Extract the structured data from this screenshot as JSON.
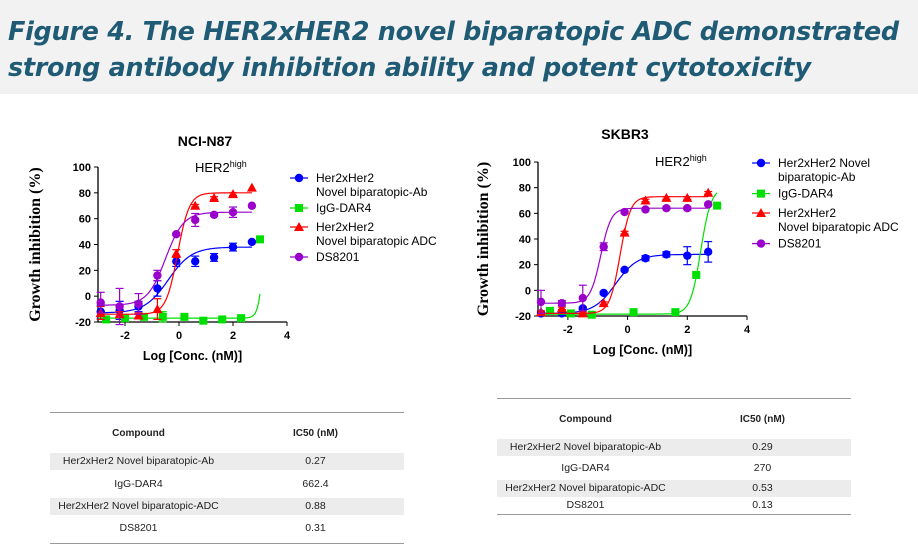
{
  "title": "Figure 4. The HER2xHER2 novel biparatopic ADC demonstrated strong antibody inhibition ability and potent cytotoxicity",
  "chart_data": [
    {
      "type": "scatter",
      "title": "NCI-N87",
      "annotation": "HER2",
      "annotation_sup": "high",
      "xlabel": "Log [Conc. (nM)]",
      "ylabel": "Growth inhibition (%)",
      "xlim": [
        -3,
        4
      ],
      "ylim": [
        -20,
        100
      ],
      "xticks": [
        -2,
        0,
        2,
        4
      ],
      "yticks": [
        -20,
        0,
        20,
        40,
        60,
        80,
        100
      ],
      "legend": "right",
      "series": [
        {
          "name": "Her2xHer2\nNovel biparatopic-Ab",
          "color": "#0000ff",
          "marker": "circle",
          "x": [
            -2.9,
            -2.2,
            -1.5,
            -0.8,
            -0.1,
            0.6,
            1.3,
            2.0,
            2.7
          ],
          "y": [
            -12,
            -11,
            -8,
            6,
            27,
            27,
            30,
            38,
            42
          ],
          "err": [
            5,
            7,
            4,
            6,
            4,
            4,
            3,
            3,
            0
          ],
          "fit": {
            "bottom": -13,
            "top": 38,
            "logec50": -0.4,
            "hill": 1.0
          }
        },
        {
          "name": "IgG-DAR4",
          "color": "#00e000",
          "marker": "square",
          "x": [
            -2.7,
            -2.0,
            -1.3,
            -0.6,
            0.2,
            0.9,
            1.6,
            2.3,
            3.0
          ],
          "y": [
            -18,
            -17,
            -16,
            -16,
            -16,
            -19,
            -18,
            -17,
            44
          ],
          "err": [
            1,
            1,
            2,
            4,
            1,
            1,
            1,
            1,
            1
          ],
          "fit": {
            "bottom": -17,
            "top": 300,
            "logec50": 3.3,
            "hill": 4
          }
        },
        {
          "name": "Her2xHer2\nNovel biparatopic ADC",
          "color": "#ff0000",
          "marker": "triangle",
          "x": [
            -2.9,
            -2.2,
            -1.5,
            -0.8,
            -0.1,
            0.6,
            1.3,
            2.0,
            2.7
          ],
          "y": [
            -13,
            -14,
            -15,
            -10,
            33,
            70,
            76,
            79,
            84
          ],
          "err": [
            5,
            2,
            2,
            8,
            3,
            1,
            1,
            1,
            0
          ],
          "fit": {
            "bottom": -14,
            "top": 80,
            "logec50": -0.05,
            "hill": 2.0
          }
        },
        {
          "name": "DS8201",
          "color": "#9900cc",
          "marker": "circle",
          "x": [
            -2.9,
            -2.2,
            -1.5,
            -0.8,
            -0.1,
            0.6,
            1.3,
            2.0,
            2.7
          ],
          "y": [
            -5,
            -8,
            -6,
            16,
            48,
            59,
            63,
            65,
            70
          ],
          "err": [
            8,
            14,
            8,
            4,
            1,
            5,
            1,
            4,
            0
          ],
          "fit": {
            "bottom": -7,
            "top": 65,
            "logec50": -0.5,
            "hill": 1.3
          }
        }
      ]
    },
    {
      "type": "scatter",
      "title": "SKBR3",
      "annotation": "HER2",
      "annotation_sup": "high",
      "xlabel": "Log [Conc. (nM)]",
      "ylabel": "Growth inhibition (%)",
      "xlim": [
        -3,
        4
      ],
      "ylim": [
        -20,
        100
      ],
      "xticks": [
        -2,
        0,
        2,
        4
      ],
      "yticks": [
        -20,
        0,
        20,
        40,
        60,
        80,
        100
      ],
      "legend": "right",
      "series": [
        {
          "name": "Her2xHer2 Novel\nbiparatopic-Ab",
          "color": "#0000ff",
          "marker": "circle",
          "x": [
            -2.9,
            -2.2,
            -1.5,
            -0.8,
            -0.1,
            0.6,
            1.3,
            2.0,
            2.7
          ],
          "y": [
            -18,
            -18,
            -14,
            -2,
            16,
            25,
            28,
            27,
            30
          ],
          "err": [
            1,
            1,
            1,
            1,
            1,
            2,
            2,
            7,
            8
          ],
          "fit": {
            "bottom": -18,
            "top": 28,
            "logec50": -0.4,
            "hill": 1.2
          }
        },
        {
          "name": "IgG-DAR4",
          "color": "#00e000",
          "marker": "square",
          "x": [
            -2.6,
            -1.9,
            -1.2,
            0.2,
            1.6,
            2.3,
            3.0
          ],
          "y": [
            -16,
            -18,
            -19,
            -17,
            -17,
            12,
            66
          ],
          "err": [
            1,
            1,
            1,
            1,
            1,
            1,
            1
          ],
          "fit": {
            "bottom": -18.5,
            "top": 80,
            "logec50": 2.45,
            "hill": 2.5
          }
        },
        {
          "name": "Her2xHer2\nNovel biparatopic ADC",
          "color": "#ff0000",
          "marker": "triangle",
          "x": [
            -2.9,
            -2.2,
            -1.5,
            -0.8,
            -0.1,
            0.6,
            1.3,
            2.0,
            2.7
          ],
          "y": [
            -17,
            -14,
            -18,
            -10,
            45,
            70,
            72,
            72,
            76
          ],
          "err": [
            1,
            1,
            1,
            1,
            1,
            1,
            1,
            1,
            1
          ],
          "fit": {
            "bottom": -18,
            "top": 73,
            "logec50": -0.25,
            "hill": 2.5
          }
        },
        {
          "name": "DS8201",
          "color": "#9900cc",
          "marker": "circle",
          "x": [
            -2.9,
            -2.2,
            -1.5,
            -0.8,
            -0.1,
            0.6,
            1.3,
            2.0,
            2.7
          ],
          "y": [
            -9,
            -10,
            -6,
            34,
            61,
            63,
            64,
            64,
            67
          ],
          "err": [
            9,
            2,
            10,
            3,
            1,
            1,
            1,
            1,
            1
          ],
          "fit": {
            "bottom": -10,
            "top": 64,
            "logec50": -0.9,
            "hill": 2.5
          }
        }
      ]
    }
  ],
  "tables": [
    {
      "headers": [
        "Compound",
        "IC50 (nM)"
      ],
      "rows": [
        [
          "Her2xHer2 Novel biparatopic-Ab",
          "0.27"
        ],
        [
          "IgG-DAR4",
          "662.4"
        ],
        [
          "Her2xHer2 Novel biparatopic-ADC",
          "0.88"
        ],
        [
          "DS8201",
          "0.31"
        ]
      ]
    },
    {
      "headers": [
        "Compound",
        "IC50 (nM)"
      ],
      "rows": [
        [
          "Her2xHer2 Novel biparatopic-Ab",
          "0.29"
        ],
        [
          "IgG-DAR4",
          "270"
        ],
        [
          "Her2xHer2 Novel biparatopic-ADC",
          "0.53"
        ],
        [
          "DS8201",
          "0.13"
        ]
      ]
    }
  ]
}
